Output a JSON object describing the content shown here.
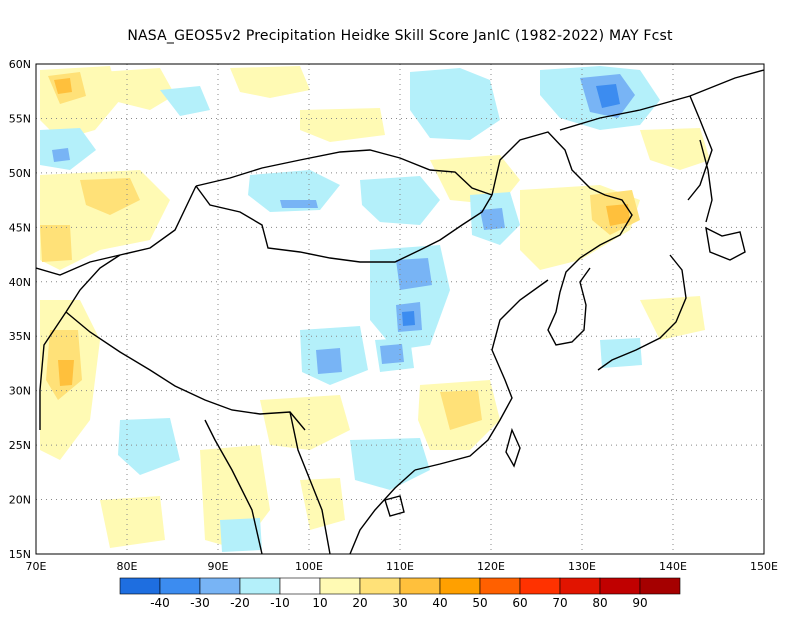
{
  "title": "NASA_GEOS5v2  Precipitation Heidke Skill Score JanIC (1982-2022) MAY Fcst",
  "axes": {
    "lon_labels": [
      "70E",
      "80E",
      "90E",
      "100E",
      "110E",
      "120E",
      "130E",
      "140E",
      "150E"
    ],
    "lat_labels": [
      "60N",
      "55N",
      "50N",
      "45N",
      "40N",
      "35N",
      "30N",
      "25N",
      "20N",
      "15N"
    ],
    "lon_range": [
      70,
      150
    ],
    "lat_range": [
      15,
      60
    ],
    "grid": "dotted"
  },
  "colorbar": {
    "labels": [
      "-40",
      "-30",
      "-20",
      "-10",
      "10",
      "20",
      "30",
      "40",
      "50",
      "60",
      "70",
      "80",
      "90"
    ],
    "colors": [
      "#1e6ee0",
      "#3c8cf0",
      "#78b4f5",
      "#b4f0fa",
      "#ffffff",
      "#fffab4",
      "#ffe178",
      "#ffc03c",
      "#ffa000",
      "#ff6000",
      "#ff3200",
      "#e11400",
      "#c00000",
      "#a50000"
    ]
  },
  "patch_colors": {
    "light_yellow": "#fffab4",
    "yellow": "#ffe178",
    "orange": "#ffc03c",
    "light_blue": "#b4f0fa",
    "mid_blue": "#78b4f5",
    "blue": "#3c8cf0"
  }
}
